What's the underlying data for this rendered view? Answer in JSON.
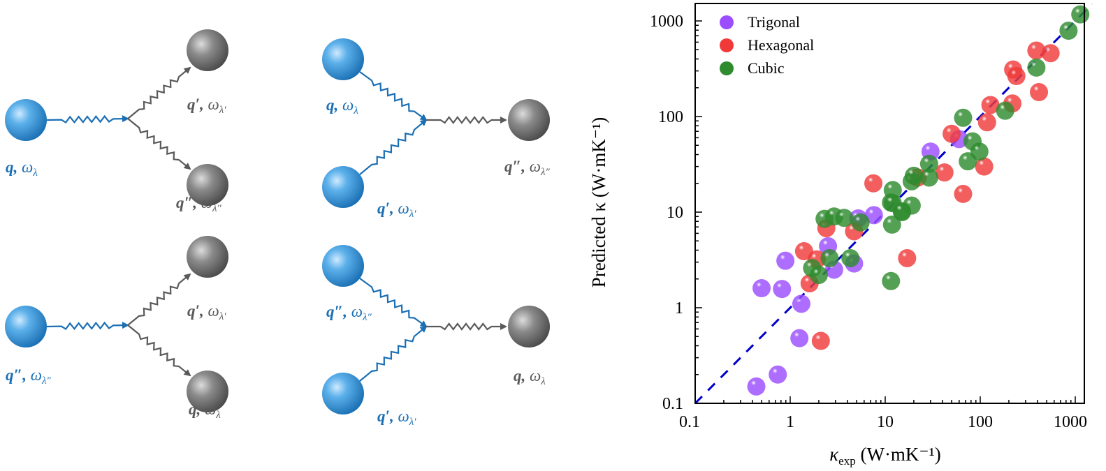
{
  "diagram": {
    "colors": {
      "incoming": "#1b6fb5",
      "outgoing": "#5a5a5a"
    },
    "panels": [
      {
        "labels": [
          {
            "q": "q,",
            "omega": " ω",
            "sub": "λ"
          },
          {
            "q": "q′,",
            "omega": " ω",
            "sub": "λ′"
          },
          {
            "q": "q″,",
            "omega": " ω",
            "sub": "λ″"
          }
        ]
      },
      {
        "labels": [
          {
            "q": "q,",
            "omega": " ω",
            "sub": "λ"
          },
          {
            "q": "q′,",
            "omega": " ω",
            "sub": "λ′"
          },
          {
            "q": "q″,",
            "omega": " ω",
            "sub": "λ″"
          }
        ]
      },
      {
        "labels": [
          {
            "q": "q″,",
            "omega": " ω",
            "sub": "λ″"
          },
          {
            "q": "q′,",
            "omega": " ω",
            "sub": "λ′"
          },
          {
            "q": "q,",
            "omega": " ω",
            "sub": "λ"
          }
        ]
      },
      {
        "labels": [
          {
            "q": "q″,",
            "omega": " ω",
            "sub": "λ″"
          },
          {
            "q": "q′,",
            "omega": " ω",
            "sub": "λ′"
          },
          {
            "q": "q,",
            "omega": " ω",
            "sub": "λ"
          }
        ]
      }
    ]
  },
  "chart_data": {
    "type": "scatter",
    "xscale": "log",
    "yscale": "log",
    "xlim": [
      0.1,
      1500
    ],
    "ylim": [
      0.1,
      1500
    ],
    "xticks": [
      "0.1",
      "1",
      "10",
      "100",
      "1000"
    ],
    "yticks": [
      "0.1",
      "1",
      "10",
      "100",
      "1000"
    ],
    "xlabel": {
      "main": "κ",
      "sub": "exp",
      "unit": " (W·mK⁻¹)"
    },
    "ylabel": "Predicted κ (W·mK⁻¹)",
    "legend_position": "top-left",
    "reference_line": {
      "type": "y=x",
      "style": "dashed",
      "color": "#0000cc"
    },
    "series": [
      {
        "name": "Trigonal",
        "color": "#9b4dff",
        "points": [
          [
            0.44,
            0.15
          ],
          [
            0.74,
            0.2
          ],
          [
            1.25,
            0.48
          ],
          [
            0.5,
            1.6
          ],
          [
            0.82,
            1.57
          ],
          [
            0.89,
            3.1
          ],
          [
            1.31,
            1.1
          ],
          [
            2.5,
            4.4
          ],
          [
            2.9,
            2.5
          ],
          [
            4.7,
            2.9
          ],
          [
            5.2,
            8.6
          ],
          [
            7.6,
            9.3
          ],
          [
            30,
            43
          ],
          [
            60,
            58
          ]
        ]
      },
      {
        "name": "Hexagonal",
        "color": "#f03a3a",
        "points": [
          [
            1.4,
            3.9
          ],
          [
            1.9,
            3.2
          ],
          [
            1.6,
            1.8
          ],
          [
            2.4,
            6.8
          ],
          [
            4.7,
            6.3
          ],
          [
            2.1,
            0.45
          ],
          [
            17,
            3.3
          ],
          [
            7.5,
            20
          ],
          [
            22,
            23
          ],
          [
            42,
            26
          ],
          [
            66,
            15.5
          ],
          [
            50,
            66
          ],
          [
            110,
            30
          ],
          [
            118,
            87
          ],
          [
            128,
            132
          ],
          [
            218,
            137
          ],
          [
            222,
            310
          ],
          [
            240,
            265
          ],
          [
            415,
            180
          ],
          [
            390,
            490
          ],
          [
            550,
            460
          ]
        ]
      },
      {
        "name": "Cubic",
        "color": "#2e8b2e",
        "points": [
          [
            2.3,
            8.5
          ],
          [
            2.9,
            9.0
          ],
          [
            3.7,
            8.7
          ],
          [
            5.5,
            7.8
          ],
          [
            1.7,
            2.6
          ],
          [
            2.0,
            2.2
          ],
          [
            2.6,
            3.3
          ],
          [
            4.3,
            3.3
          ],
          [
            11.5,
            1.9
          ],
          [
            11.8,
            7.4
          ],
          [
            11.5,
            12.6
          ],
          [
            15,
            10
          ],
          [
            66,
            97
          ],
          [
            83,
            55
          ],
          [
            98,
            43
          ],
          [
            74,
            34
          ],
          [
            183,
            115
          ],
          [
            390,
            325
          ],
          [
            850,
            790
          ],
          [
            1130,
            1170
          ],
          [
            29,
            32
          ],
          [
            29,
            23
          ],
          [
            19,
            21
          ],
          [
            12,
            17
          ],
          [
            12,
            12.4
          ],
          [
            19,
            11.7
          ],
          [
            15,
            10.2
          ],
          [
            20,
            24
          ]
        ]
      }
    ]
  }
}
